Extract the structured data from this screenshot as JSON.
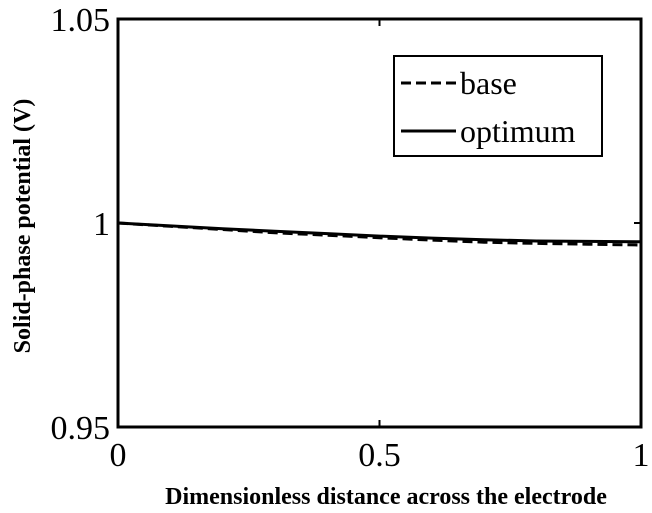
{
  "chart_data": {
    "type": "line",
    "xlabel": "Dimensionless distance across the electrode",
    "ylabel": "Solid-phase potential (V)",
    "xlim": [
      0,
      1
    ],
    "ylim": [
      0.95,
      1.05
    ],
    "x_ticks": [
      0,
      0.5,
      1
    ],
    "x_tick_labels": [
      "0",
      "0.5",
      "1"
    ],
    "y_ticks": [
      0.95,
      1,
      1.05
    ],
    "y_tick_labels": [
      "0.95",
      "1",
      "1.05"
    ],
    "grid": false,
    "legend_position": "top-right",
    "series": [
      {
        "name": "base",
        "style": "dashed",
        "color": "#000000",
        "x": [
          0,
          0.1,
          0.2,
          0.3,
          0.4,
          0.5,
          0.6,
          0.7,
          0.8,
          0.9,
          1.0
        ],
        "y": [
          1.0,
          0.9992,
          0.9984,
          0.9976,
          0.997,
          0.9964,
          0.9958,
          0.9953,
          0.995,
          0.9948,
          0.9946
        ]
      },
      {
        "name": "optimum",
        "style": "solid",
        "color": "#000000",
        "x": [
          0,
          0.1,
          0.2,
          0.3,
          0.4,
          0.5,
          0.6,
          0.7,
          0.8,
          0.9,
          1.0
        ],
        "y": [
          1.0,
          0.9993,
          0.9986,
          0.998,
          0.9974,
          0.9968,
          0.9963,
          0.9959,
          0.9956,
          0.9955,
          0.9954
        ]
      }
    ]
  }
}
